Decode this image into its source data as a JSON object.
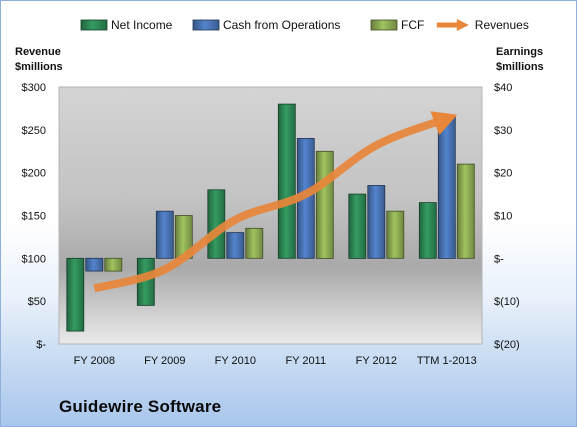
{
  "chart_data": {
    "type": "bar",
    "title": "Guidewire Software",
    "categories": [
      "FY 2008",
      "FY 2009",
      "FY 2010",
      "FY 2011",
      "FY 2012",
      "TTM 1-2013"
    ],
    "left_axis": {
      "label_line1": "Revenue",
      "label_line2": "$millions",
      "ylim": [
        0,
        300
      ],
      "ticks": [
        0,
        50,
        100,
        150,
        200,
        250,
        300
      ],
      "tick_labels": [
        "$-",
        "$50",
        "$100",
        "$150",
        "$200",
        "$250",
        "$300"
      ]
    },
    "right_axis": {
      "label_line1": "Earnings",
      "label_line2": "$millions",
      "ylim": [
        -20,
        40
      ],
      "ticks": [
        -20,
        -10,
        0,
        10,
        20,
        30,
        40
      ],
      "tick_labels": [
        "$(20)",
        "$(10)",
        "$-",
        "$10",
        "$20",
        "$30",
        "$40"
      ]
    },
    "series": [
      {
        "name": "Net Income",
        "type": "bar",
        "axis": "right",
        "color": "#2e8b57",
        "values": [
          -17,
          -11,
          16,
          36,
          15,
          13
        ]
      },
      {
        "name": "Cash from Operations",
        "type": "bar",
        "axis": "right",
        "color": "#4a76b8",
        "values": [
          -3,
          11,
          6,
          28,
          17,
          33
        ]
      },
      {
        "name": "FCF",
        "type": "bar",
        "axis": "right",
        "color": "#8fae55",
        "values": [
          -3,
          10,
          7,
          25,
          11,
          22
        ]
      },
      {
        "name": "Revenues",
        "type": "line",
        "axis": "left",
        "color": "#e8863a",
        "values": [
          65,
          87,
          145,
          175,
          232,
          263
        ]
      }
    ],
    "legend_position": "top",
    "grid": false
  }
}
